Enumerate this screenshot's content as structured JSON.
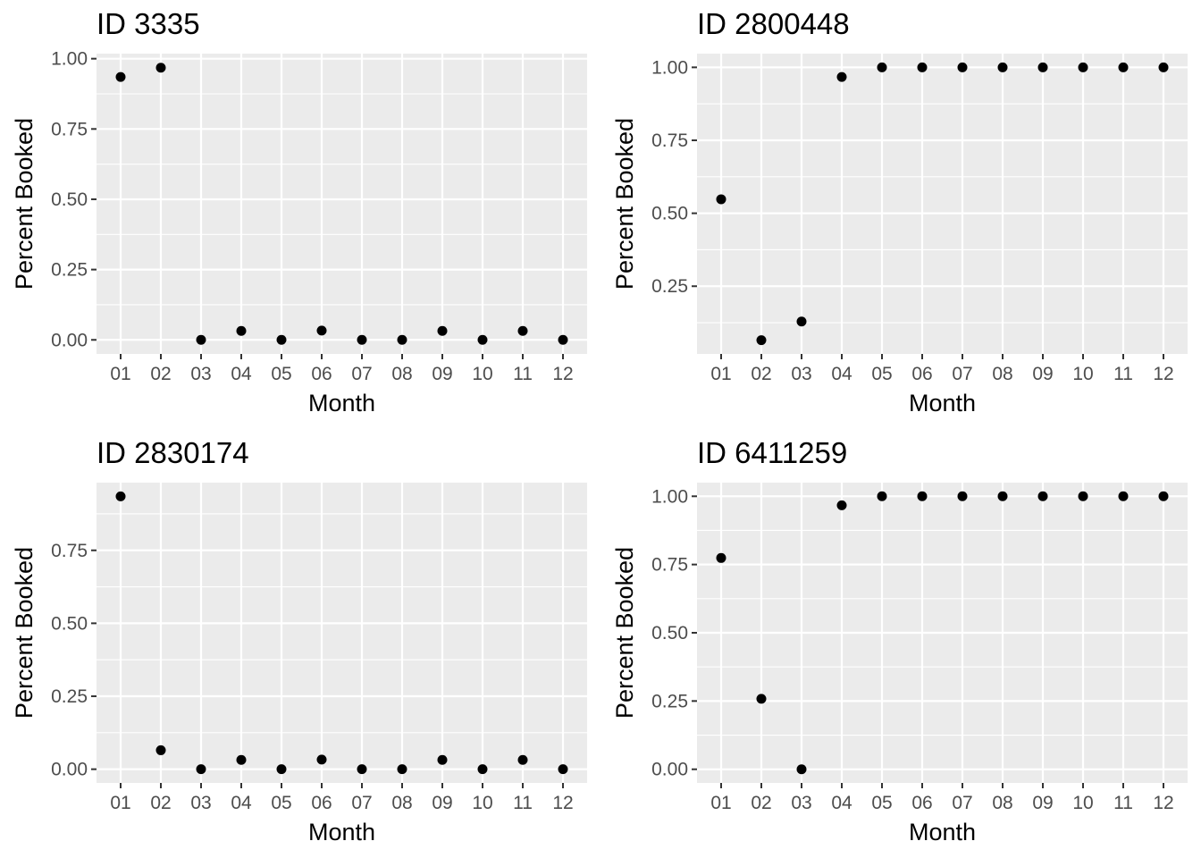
{
  "chart_data": [
    {
      "type": "scatter",
      "title": "ID 3335",
      "xlabel": "Month",
      "ylabel": "Percent Booked",
      "categories": [
        "01",
        "02",
        "03",
        "04",
        "05",
        "06",
        "07",
        "08",
        "09",
        "10",
        "11",
        "12"
      ],
      "values": [
        0.935,
        0.968,
        0.0,
        0.032,
        0.0,
        0.033,
        0.0,
        0.0,
        0.032,
        0.0,
        0.032,
        0.0
      ],
      "yticks": [
        0.0,
        0.25,
        0.5,
        0.75,
        1.0
      ],
      "ytick_labels": [
        "0.00",
        "0.25",
        "0.50",
        "0.75",
        "1.00"
      ],
      "ylim": [
        -0.05,
        1.018
      ],
      "grid": true,
      "background": "#ebebeb",
      "point_color": "#000000"
    },
    {
      "type": "scatter",
      "title": "ID 2800448",
      "xlabel": "Month",
      "ylabel": "Percent Booked",
      "categories": [
        "01",
        "02",
        "03",
        "04",
        "05",
        "06",
        "07",
        "08",
        "09",
        "10",
        "11",
        "12"
      ],
      "values": [
        0.548,
        0.065,
        0.129,
        0.967,
        1.0,
        1.0,
        1.0,
        1.0,
        1.0,
        1.0,
        1.0,
        1.0
      ],
      "yticks": [
        0.25,
        0.5,
        0.75,
        1.0
      ],
      "ytick_labels": [
        "0.25",
        "0.50",
        "0.75",
        "1.00"
      ],
      "ylim": [
        0.018,
        1.047
      ],
      "grid": true,
      "background": "#ebebeb",
      "point_color": "#000000"
    },
    {
      "type": "scatter",
      "title": "ID 2830174",
      "xlabel": "Month",
      "ylabel": "Percent Booked",
      "categories": [
        "01",
        "02",
        "03",
        "04",
        "05",
        "06",
        "07",
        "08",
        "09",
        "10",
        "11",
        "12"
      ],
      "values": [
        0.935,
        0.065,
        0.0,
        0.032,
        0.0,
        0.033,
        0.0,
        0.0,
        0.032,
        0.0,
        0.032,
        0.0
      ],
      "yticks": [
        0.0,
        0.25,
        0.5,
        0.75
      ],
      "ytick_labels": [
        "0.00",
        "0.25",
        "0.50",
        "0.75"
      ],
      "ylim": [
        -0.047,
        0.982
      ],
      "grid": true,
      "background": "#ebebeb",
      "point_color": "#000000"
    },
    {
      "type": "scatter",
      "title": "ID 6411259",
      "xlabel": "Month",
      "ylabel": "Percent Booked",
      "categories": [
        "01",
        "02",
        "03",
        "04",
        "05",
        "06",
        "07",
        "08",
        "09",
        "10",
        "11",
        "12"
      ],
      "values": [
        0.774,
        0.258,
        0.0,
        0.967,
        1.0,
        1.0,
        1.0,
        1.0,
        1.0,
        1.0,
        1.0,
        1.0
      ],
      "yticks": [
        0.0,
        0.25,
        0.5,
        0.75,
        1.0
      ],
      "ytick_labels": [
        "0.00",
        "0.25",
        "0.50",
        "0.75",
        "1.00"
      ],
      "ylim": [
        -0.05,
        1.05
      ],
      "grid": true,
      "background": "#ebebeb",
      "point_color": "#000000"
    }
  ]
}
